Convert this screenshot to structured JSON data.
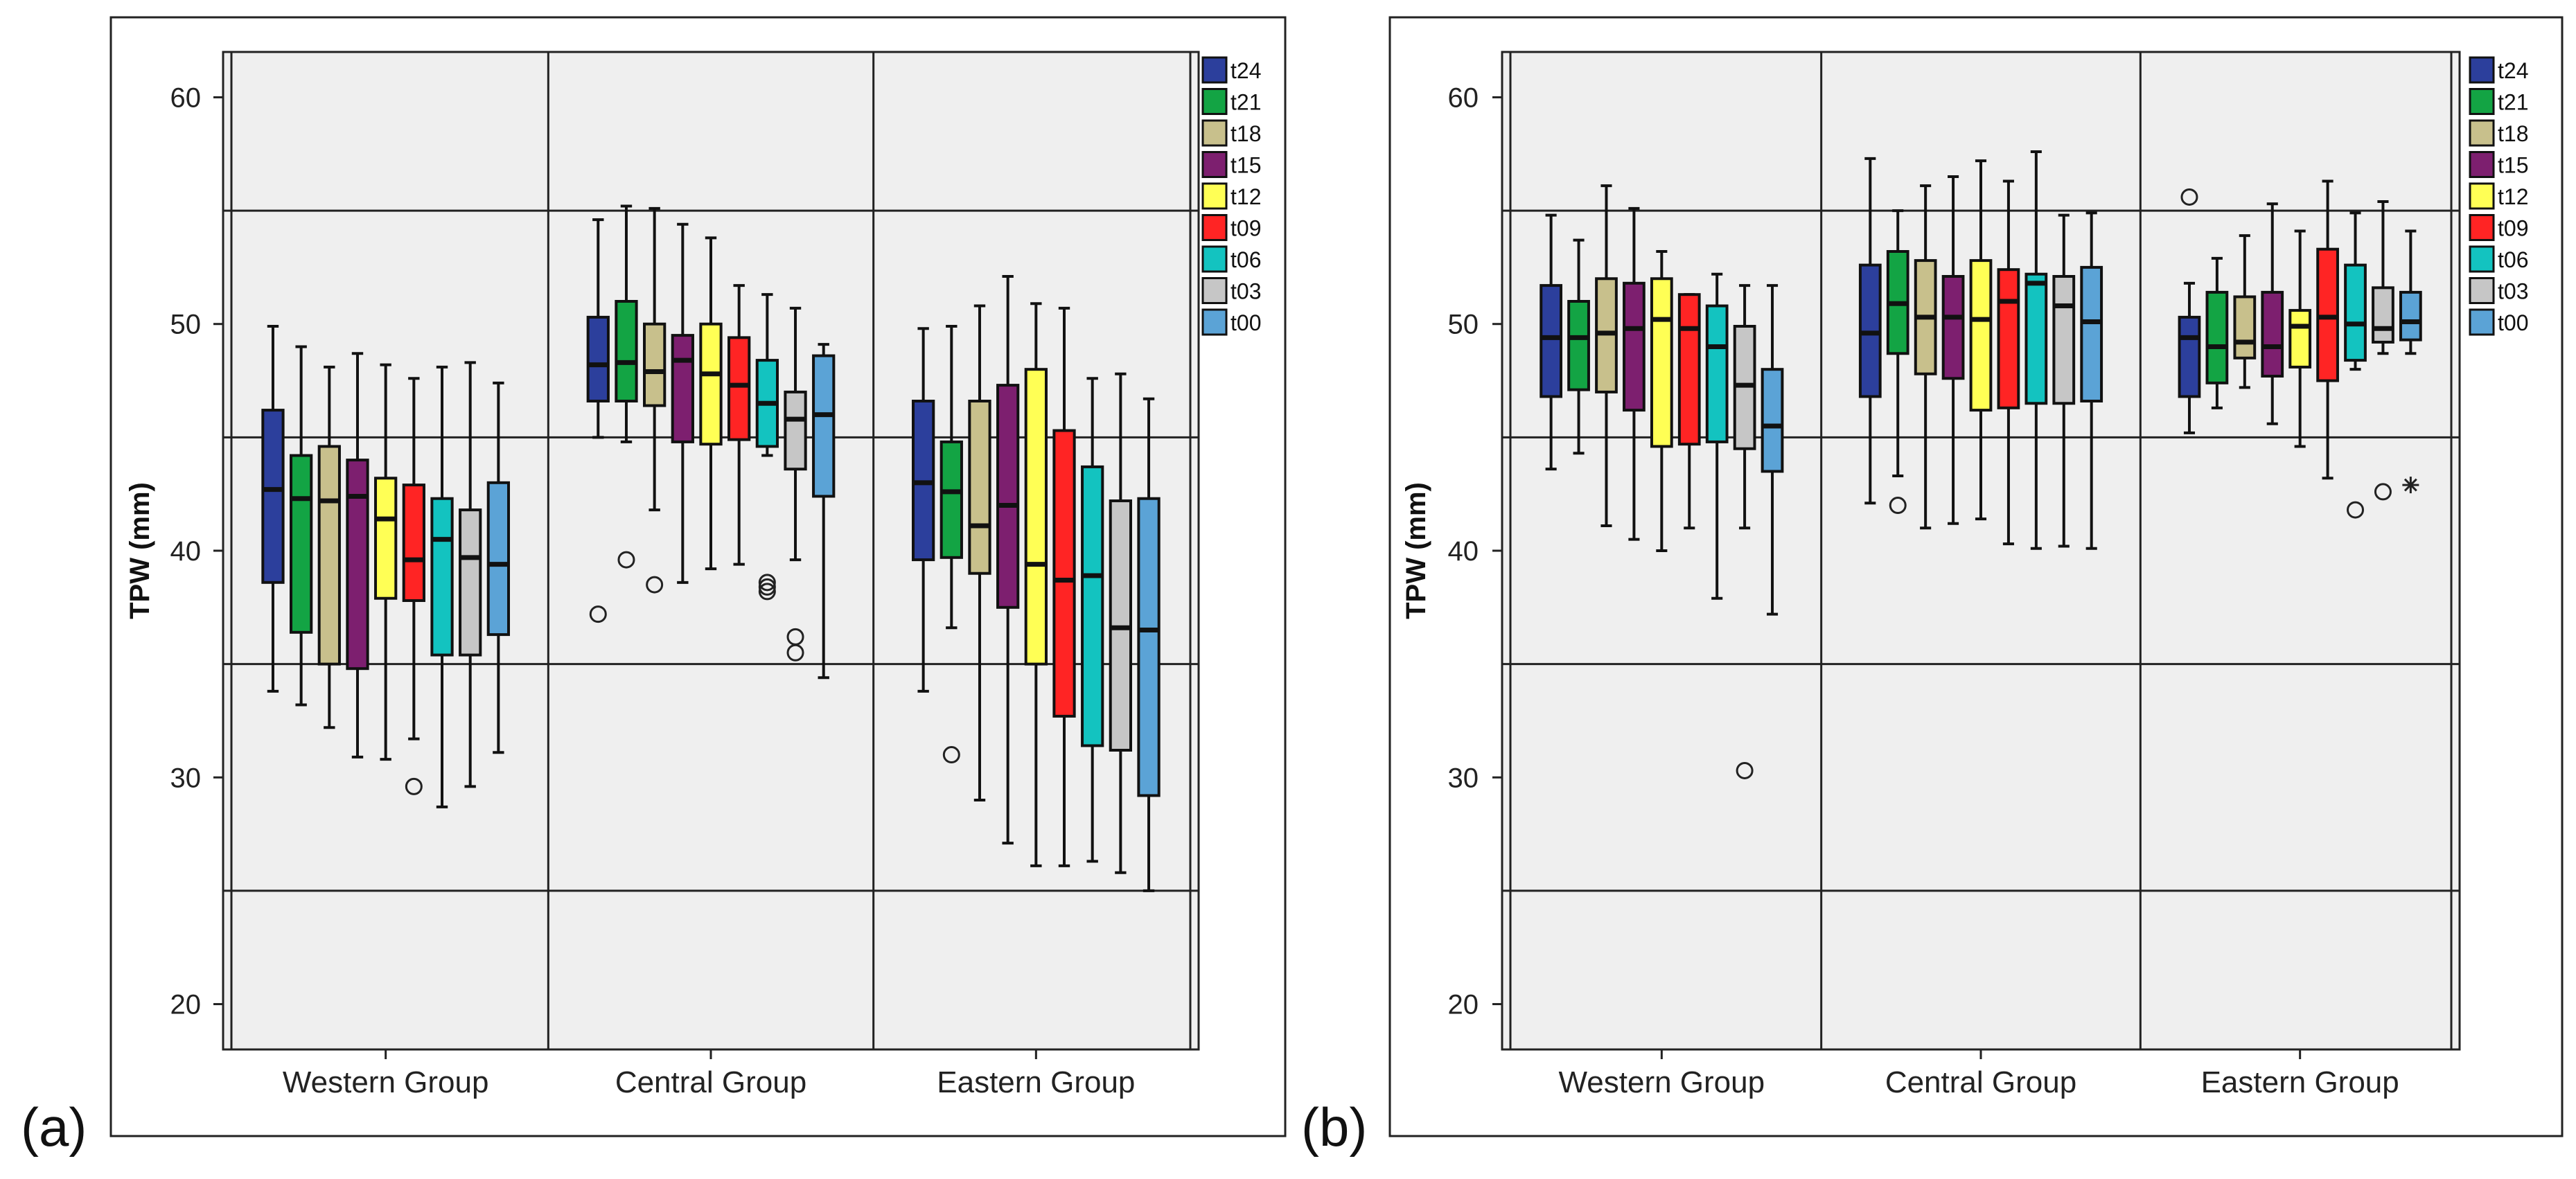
{
  "chart_data": [
    {
      "type": "boxplot",
      "panel_label": "(a)",
      "ylabel": "TPW (mm)",
      "ylim": [
        18,
        62
      ],
      "yticks": [
        "20",
        "30",
        "40",
        "50",
        "60"
      ],
      "grid_y": [
        25,
        35,
        45,
        55
      ],
      "categories": [
        "Western Group",
        "Central Group",
        "Eastern Group"
      ],
      "series_names": [
        "t24",
        "t21",
        "t18",
        "t15",
        "t12",
        "t09",
        "t06",
        "t03",
        "t00"
      ],
      "colors": [
        "#2c3f9c",
        "#13a444",
        "#c8c08c",
        "#7d1f6f",
        "#ffff55",
        "#ff2424",
        "#13c3c0",
        "#c6c6c6",
        "#5ba3d6"
      ],
      "groups": [
        {
          "name": "Western Group",
          "boxes": [
            {
              "whislo": 33.8,
              "q1": 38.6,
              "med": 42.7,
              "q3": 46.2,
              "whishi": 49.9,
              "fliers": []
            },
            {
              "whislo": 33.2,
              "q1": 36.4,
              "med": 42.3,
              "q3": 44.2,
              "whishi": 49.0,
              "fliers": []
            },
            {
              "whislo": 32.2,
              "q1": 35.0,
              "med": 42.2,
              "q3": 44.6,
              "whishi": 48.1,
              "fliers": []
            },
            {
              "whislo": 30.9,
              "q1": 34.8,
              "med": 42.4,
              "q3": 44.0,
              "whishi": 48.7,
              "fliers": []
            },
            {
              "whislo": 30.8,
              "q1": 37.9,
              "med": 41.4,
              "q3": 43.2,
              "whishi": 48.2,
              "fliers": []
            },
            {
              "whislo": 31.7,
              "q1": 37.8,
              "med": 39.6,
              "q3": 42.9,
              "whishi": 47.6,
              "fliers": [
                29.6
              ]
            },
            {
              "whislo": 28.7,
              "q1": 35.4,
              "med": 40.5,
              "q3": 42.3,
              "whishi": 48.1,
              "fliers": []
            },
            {
              "whislo": 29.6,
              "q1": 35.4,
              "med": 39.7,
              "q3": 41.8,
              "whishi": 48.3,
              "fliers": []
            },
            {
              "whislo": 31.1,
              "q1": 36.3,
              "med": 39.4,
              "q3": 43.0,
              "whishi": 47.4,
              "fliers": []
            }
          ]
        },
        {
          "name": "Central Group",
          "boxes": [
            {
              "whislo": 45.0,
              "q1": 46.6,
              "med": 48.2,
              "q3": 50.3,
              "whishi": 54.6,
              "fliers": [
                37.2
              ]
            },
            {
              "whislo": 44.8,
              "q1": 46.6,
              "med": 48.3,
              "q3": 51.0,
              "whishi": 55.2,
              "fliers": [
                39.6
              ]
            },
            {
              "whislo": 41.8,
              "q1": 46.4,
              "med": 47.9,
              "q3": 50.0,
              "whishi": 55.1,
              "fliers": [
                38.5
              ]
            },
            {
              "whislo": 38.6,
              "q1": 44.8,
              "med": 48.4,
              "q3": 49.5,
              "whishi": 54.4,
              "fliers": []
            },
            {
              "whislo": 39.2,
              "q1": 44.7,
              "med": 47.8,
              "q3": 50.0,
              "whishi": 53.8,
              "fliers": []
            },
            {
              "whislo": 39.4,
              "q1": 44.9,
              "med": 47.3,
              "q3": 49.4,
              "whishi": 51.7,
              "fliers": []
            },
            {
              "whislo": 44.2,
              "q1": 44.6,
              "med": 46.5,
              "q3": 48.4,
              "whishi": 51.3,
              "fliers": [
                38.2,
                38.4,
                38.6
              ]
            },
            {
              "whislo": 39.6,
              "q1": 43.6,
              "med": 45.8,
              "q3": 47.0,
              "whishi": 50.7,
              "fliers": [
                36.2,
                35.5
              ]
            },
            {
              "whislo": 34.4,
              "q1": 42.4,
              "med": 46.0,
              "q3": 48.6,
              "whishi": 49.1,
              "fliers": []
            }
          ]
        },
        {
          "name": "Eastern Group",
          "boxes": [
            {
              "whislo": 33.8,
              "q1": 39.6,
              "med": 43.0,
              "q3": 46.6,
              "whishi": 49.8,
              "fliers": []
            },
            {
              "whislo": 36.6,
              "q1": 39.7,
              "med": 42.6,
              "q3": 44.8,
              "whishi": 49.9,
              "fliers": [
                31.0
              ]
            },
            {
              "whislo": 29.0,
              "q1": 39.0,
              "med": 41.1,
              "q3": 46.6,
              "whishi": 50.8,
              "fliers": []
            },
            {
              "whislo": 27.1,
              "q1": 37.5,
              "med": 42.0,
              "q3": 47.3,
              "whishi": 52.1,
              "fliers": []
            },
            {
              "whislo": 26.1,
              "q1": 35.0,
              "med": 39.4,
              "q3": 48.0,
              "whishi": 50.9,
              "fliers": []
            },
            {
              "whislo": 26.1,
              "q1": 32.7,
              "med": 38.7,
              "q3": 45.3,
              "whishi": 50.7,
              "fliers": []
            },
            {
              "whislo": 26.3,
              "q1": 31.4,
              "med": 38.9,
              "q3": 43.7,
              "whishi": 47.6,
              "fliers": []
            },
            {
              "whislo": 25.8,
              "q1": 31.2,
              "med": 36.6,
              "q3": 42.2,
              "whishi": 47.8,
              "fliers": []
            },
            {
              "whislo": 25.0,
              "q1": 29.2,
              "med": 36.5,
              "q3": 42.3,
              "whishi": 46.7,
              "fliers": []
            }
          ]
        }
      ]
    },
    {
      "type": "boxplot",
      "panel_label": "(b)",
      "ylabel": "TPW (mm)",
      "ylim": [
        18,
        62
      ],
      "yticks": [
        "20",
        "30",
        "40",
        "50",
        "60"
      ],
      "grid_y": [
        25,
        35,
        45,
        55
      ],
      "categories": [
        "Western Group",
        "Central Group",
        "Eastern Group"
      ],
      "series_names": [
        "t24",
        "t21",
        "t18",
        "t15",
        "t12",
        "t09",
        "t06",
        "t03",
        "t00"
      ],
      "colors": [
        "#2c3f9c",
        "#13a444",
        "#c8c08c",
        "#7d1f6f",
        "#ffff55",
        "#ff2424",
        "#13c3c0",
        "#c6c6c6",
        "#5ba3d6"
      ],
      "groups": [
        {
          "name": "Western Group",
          "boxes": [
            {
              "whislo": 43.6,
              "q1": 46.8,
              "med": 49.4,
              "q3": 51.7,
              "whishi": 54.8,
              "fliers": []
            },
            {
              "whislo": 44.3,
              "q1": 47.1,
              "med": 49.4,
              "q3": 51.0,
              "whishi": 53.7,
              "fliers": []
            },
            {
              "whislo": 41.1,
              "q1": 47.0,
              "med": 49.6,
              "q3": 52.0,
              "whishi": 56.1,
              "fliers": []
            },
            {
              "whislo": 40.5,
              "q1": 46.2,
              "med": 49.8,
              "q3": 51.8,
              "whishi": 55.1,
              "fliers": []
            },
            {
              "whislo": 40.0,
              "q1": 44.6,
              "med": 50.2,
              "q3": 52.0,
              "whishi": 53.2,
              "fliers": []
            },
            {
              "whislo": 41.0,
              "q1": 44.7,
              "med": 49.8,
              "q3": 51.3,
              "whishi": 51.3,
              "fliers": []
            },
            {
              "whislo": 37.9,
              "q1": 44.8,
              "med": 49.0,
              "q3": 50.8,
              "whishi": 52.2,
              "fliers": []
            },
            {
              "whislo": 41.0,
              "q1": 44.5,
              "med": 47.3,
              "q3": 49.9,
              "whishi": 51.7,
              "fliers": [
                30.3
              ]
            },
            {
              "whislo": 37.2,
              "q1": 43.5,
              "med": 45.5,
              "q3": 48.0,
              "whishi": 51.7,
              "fliers": []
            }
          ]
        },
        {
          "name": "Central Group",
          "boxes": [
            {
              "whislo": 42.1,
              "q1": 46.8,
              "med": 49.6,
              "q3": 52.6,
              "whishi": 57.3,
              "fliers": []
            },
            {
              "whislo": 43.3,
              "q1": 48.7,
              "med": 50.9,
              "q3": 53.2,
              "whishi": 55.0,
              "fliers": [
                42.0
              ]
            },
            {
              "whislo": 41.0,
              "q1": 47.8,
              "med": 50.3,
              "q3": 52.8,
              "whishi": 56.1,
              "fliers": []
            },
            {
              "whislo": 41.2,
              "q1": 47.6,
              "med": 50.3,
              "q3": 52.1,
              "whishi": 56.5,
              "fliers": []
            },
            {
              "whislo": 41.4,
              "q1": 46.2,
              "med": 50.2,
              "q3": 52.8,
              "whishi": 57.2,
              "fliers": []
            },
            {
              "whislo": 40.3,
              "q1": 46.3,
              "med": 51.0,
              "q3": 52.4,
              "whishi": 56.3,
              "fliers": []
            },
            {
              "whislo": 40.1,
              "q1": 46.5,
              "med": 51.8,
              "q3": 52.2,
              "whishi": 57.6,
              "fliers": []
            },
            {
              "whislo": 40.2,
              "q1": 46.5,
              "med": 50.8,
              "q3": 52.1,
              "whishi": 54.8,
              "fliers": []
            },
            {
              "whislo": 40.1,
              "q1": 46.6,
              "med": 50.1,
              "q3": 52.5,
              "whishi": 54.9,
              "fliers": []
            }
          ]
        },
        {
          "name": "Eastern Group",
          "boxes": [
            {
              "whislo": 45.2,
              "q1": 46.8,
              "med": 49.4,
              "q3": 50.3,
              "whishi": 51.8,
              "fliers": [
                55.6
              ]
            },
            {
              "whislo": 46.3,
              "q1": 47.4,
              "med": 49.0,
              "q3": 51.4,
              "whishi": 52.9,
              "fliers": []
            },
            {
              "whislo": 47.2,
              "q1": 48.5,
              "med": 49.2,
              "q3": 51.2,
              "whishi": 53.9,
              "fliers": []
            },
            {
              "whislo": 45.6,
              "q1": 47.7,
              "med": 49.0,
              "q3": 51.4,
              "whishi": 55.3,
              "fliers": []
            },
            {
              "whislo": 44.6,
              "q1": 48.1,
              "med": 49.9,
              "q3": 50.6,
              "whishi": 54.1,
              "fliers": []
            },
            {
              "whislo": 43.2,
              "q1": 47.5,
              "med": 50.3,
              "q3": 53.3,
              "whishi": 56.3,
              "fliers": []
            },
            {
              "whislo": 48.0,
              "q1": 48.4,
              "med": 50.0,
              "q3": 52.6,
              "whishi": 54.9,
              "fliers": [
                41.8
              ]
            },
            {
              "whislo": 48.7,
              "q1": 49.2,
              "med": 49.8,
              "q3": 51.6,
              "whishi": 55.4,
              "fliers": [
                42.6
              ]
            },
            {
              "whislo": 48.7,
              "q1": 49.3,
              "med": 50.1,
              "q3": 51.4,
              "whishi": 54.1,
              "fliers": [],
              "extremes": [
                42.9
              ]
            }
          ]
        }
      ]
    }
  ]
}
